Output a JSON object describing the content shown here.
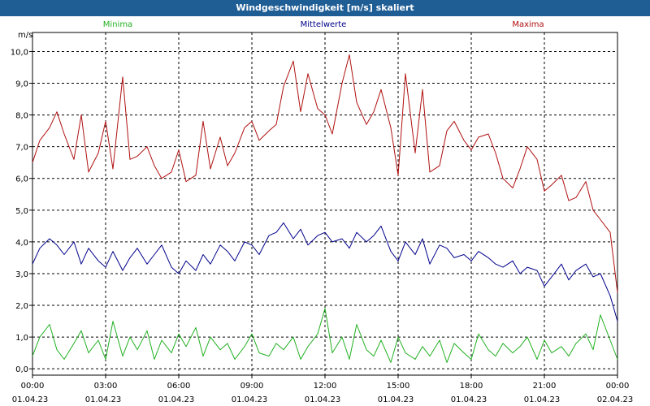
{
  "window": {
    "title": "Windgeschwindigkeit [m/s] skaliert"
  },
  "chart_data": {
    "type": "line",
    "ylabel": "m/s",
    "ylim": [
      -0.2,
      10.6
    ],
    "yticks": [
      "0,0",
      "1,0",
      "2,0",
      "3,0",
      "4,0",
      "5,0",
      "6,0",
      "7,0",
      "8,0",
      "9,0",
      "10,0"
    ],
    "xticks": [
      {
        "time": "00:00",
        "date": "01.04.23"
      },
      {
        "time": "03:00",
        "date": "01.04.23"
      },
      {
        "time": "06:00",
        "date": "01.04.23"
      },
      {
        "time": "09:00",
        "date": "01.04.23"
      },
      {
        "time": "12:00",
        "date": "01.04.23"
      },
      {
        "time": "15:00",
        "date": "01.04.23"
      },
      {
        "time": "18:00",
        "date": "01.04.23"
      },
      {
        "time": "21:00",
        "date": "01.04.23"
      },
      {
        "time": "00:00",
        "date": "02.04.23"
      }
    ],
    "xlim_hours": [
      0,
      24
    ],
    "grid": true,
    "legend_position": "top",
    "series": [
      {
        "name": "Maxima",
        "color": "#b01010",
        "x": [
          0,
          0.3,
          0.7,
          1.0,
          1.3,
          1.7,
          2.0,
          2.3,
          2.7,
          3.0,
          3.3,
          3.7,
          4.0,
          4.3,
          4.7,
          5.0,
          5.3,
          5.7,
          6.0,
          6.3,
          6.7,
          7.0,
          7.3,
          7.7,
          8.0,
          8.3,
          8.7,
          9.0,
          9.3,
          9.7,
          10.0,
          10.3,
          10.7,
          11.0,
          11.3,
          11.7,
          12.0,
          12.3,
          12.7,
          13.0,
          13.3,
          13.7,
          14.0,
          14.3,
          14.7,
          15.0,
          15.3,
          15.7,
          16.0,
          16.3,
          16.7,
          17.0,
          17.3,
          17.7,
          18.0,
          18.3,
          18.7,
          19.0,
          19.3,
          19.7,
          20.0,
          20.3,
          20.7,
          21.0,
          21.3,
          21.7,
          22.0,
          22.3,
          22.7,
          23.0,
          23.3,
          23.7,
          24.0
        ],
        "values": [
          6.5,
          7.2,
          7.6,
          8.1,
          7.4,
          6.6,
          8.0,
          6.2,
          6.8,
          7.8,
          6.3,
          9.2,
          6.6,
          6.7,
          7.0,
          6.4,
          6.0,
          6.2,
          6.9,
          5.9,
          6.1,
          7.8,
          6.3,
          7.3,
          6.4,
          6.8,
          7.6,
          7.8,
          7.2,
          7.5,
          7.7,
          8.9,
          9.7,
          8.1,
          9.3,
          8.2,
          8.0,
          7.4,
          9.0,
          9.9,
          8.4,
          7.7,
          8.1,
          8.8,
          7.6,
          6.1,
          9.3,
          6.8,
          8.8,
          6.2,
          6.4,
          7.5,
          7.8,
          7.2,
          6.9,
          7.3,
          7.4,
          6.8,
          6.0,
          5.7,
          6.3,
          7.0,
          6.6,
          5.6,
          5.8,
          6.1,
          5.3,
          5.4,
          5.9,
          5.0,
          4.7,
          4.3,
          2.4
        ]
      },
      {
        "name": "Mittelwerte",
        "color": "#00008b",
        "x": [
          0,
          0.3,
          0.7,
          1.0,
          1.3,
          1.7,
          2.0,
          2.3,
          2.7,
          3.0,
          3.3,
          3.7,
          4.0,
          4.3,
          4.7,
          5.0,
          5.3,
          5.7,
          6.0,
          6.3,
          6.7,
          7.0,
          7.3,
          7.7,
          8.0,
          8.3,
          8.7,
          9.0,
          9.3,
          9.7,
          10.0,
          10.3,
          10.7,
          11.0,
          11.3,
          11.7,
          12.0,
          12.3,
          12.7,
          13.0,
          13.3,
          13.7,
          14.0,
          14.3,
          14.7,
          15.0,
          15.3,
          15.7,
          16.0,
          16.3,
          16.7,
          17.0,
          17.3,
          17.7,
          18.0,
          18.3,
          18.7,
          19.0,
          19.3,
          19.7,
          20.0,
          20.3,
          20.7,
          21.0,
          21.3,
          21.7,
          22.0,
          22.3,
          22.7,
          23.0,
          23.3,
          23.7,
          24.0
        ],
        "values": [
          3.3,
          3.8,
          4.1,
          3.9,
          3.6,
          4.0,
          3.3,
          3.8,
          3.4,
          3.2,
          3.7,
          3.1,
          3.5,
          3.8,
          3.3,
          3.6,
          3.9,
          3.2,
          3.0,
          3.4,
          3.1,
          3.6,
          3.3,
          3.9,
          3.7,
          3.4,
          4.0,
          3.9,
          3.6,
          4.2,
          4.3,
          4.6,
          4.1,
          4.4,
          3.9,
          4.2,
          4.3,
          4.0,
          4.1,
          3.8,
          4.3,
          4.0,
          4.2,
          4.5,
          3.7,
          3.4,
          4.0,
          3.6,
          4.1,
          3.3,
          3.9,
          3.8,
          3.5,
          3.6,
          3.4,
          3.7,
          3.5,
          3.3,
          3.2,
          3.4,
          3.0,
          3.2,
          3.1,
          2.6,
          2.9,
          3.3,
          2.8,
          3.1,
          3.3,
          2.9,
          3.0,
          2.3,
          1.5
        ]
      },
      {
        "name": "Minima",
        "color": "#22b022",
        "x": [
          0,
          0.3,
          0.7,
          1.0,
          1.3,
          1.7,
          2.0,
          2.3,
          2.7,
          3.0,
          3.3,
          3.7,
          4.0,
          4.3,
          4.7,
          5.0,
          5.3,
          5.7,
          6.0,
          6.3,
          6.7,
          7.0,
          7.3,
          7.7,
          8.0,
          8.3,
          8.7,
          9.0,
          9.3,
          9.7,
          10.0,
          10.3,
          10.7,
          11.0,
          11.3,
          11.7,
          12.0,
          12.3,
          12.7,
          13.0,
          13.3,
          13.7,
          14.0,
          14.3,
          14.7,
          15.0,
          15.3,
          15.7,
          16.0,
          16.3,
          16.7,
          17.0,
          17.3,
          17.7,
          18.0,
          18.3,
          18.7,
          19.0,
          19.3,
          19.7,
          20.0,
          20.3,
          20.7,
          21.0,
          21.3,
          21.7,
          22.0,
          22.3,
          22.7,
          23.0,
          23.3,
          23.7,
          24.0
        ],
        "values": [
          0.4,
          1.0,
          1.4,
          0.6,
          0.3,
          0.8,
          1.2,
          0.5,
          0.9,
          0.3,
          1.5,
          0.4,
          1.0,
          0.6,
          1.2,
          0.3,
          0.9,
          0.5,
          1.1,
          0.7,
          1.3,
          0.4,
          1.0,
          0.6,
          0.8,
          0.3,
          0.7,
          1.1,
          0.5,
          0.4,
          0.8,
          0.6,
          1.0,
          0.3,
          0.7,
          1.1,
          1.9,
          0.5,
          1.0,
          0.3,
          1.4,
          0.6,
          0.4,
          0.9,
          0.2,
          1.0,
          0.5,
          0.3,
          0.7,
          0.4,
          0.9,
          0.2,
          0.8,
          0.5,
          0.3,
          1.1,
          0.6,
          0.4,
          0.8,
          0.5,
          0.7,
          1.0,
          0.3,
          0.9,
          0.5,
          0.7,
          0.4,
          0.8,
          1.1,
          0.6,
          1.7,
          0.9,
          0.3
        ]
      }
    ]
  }
}
